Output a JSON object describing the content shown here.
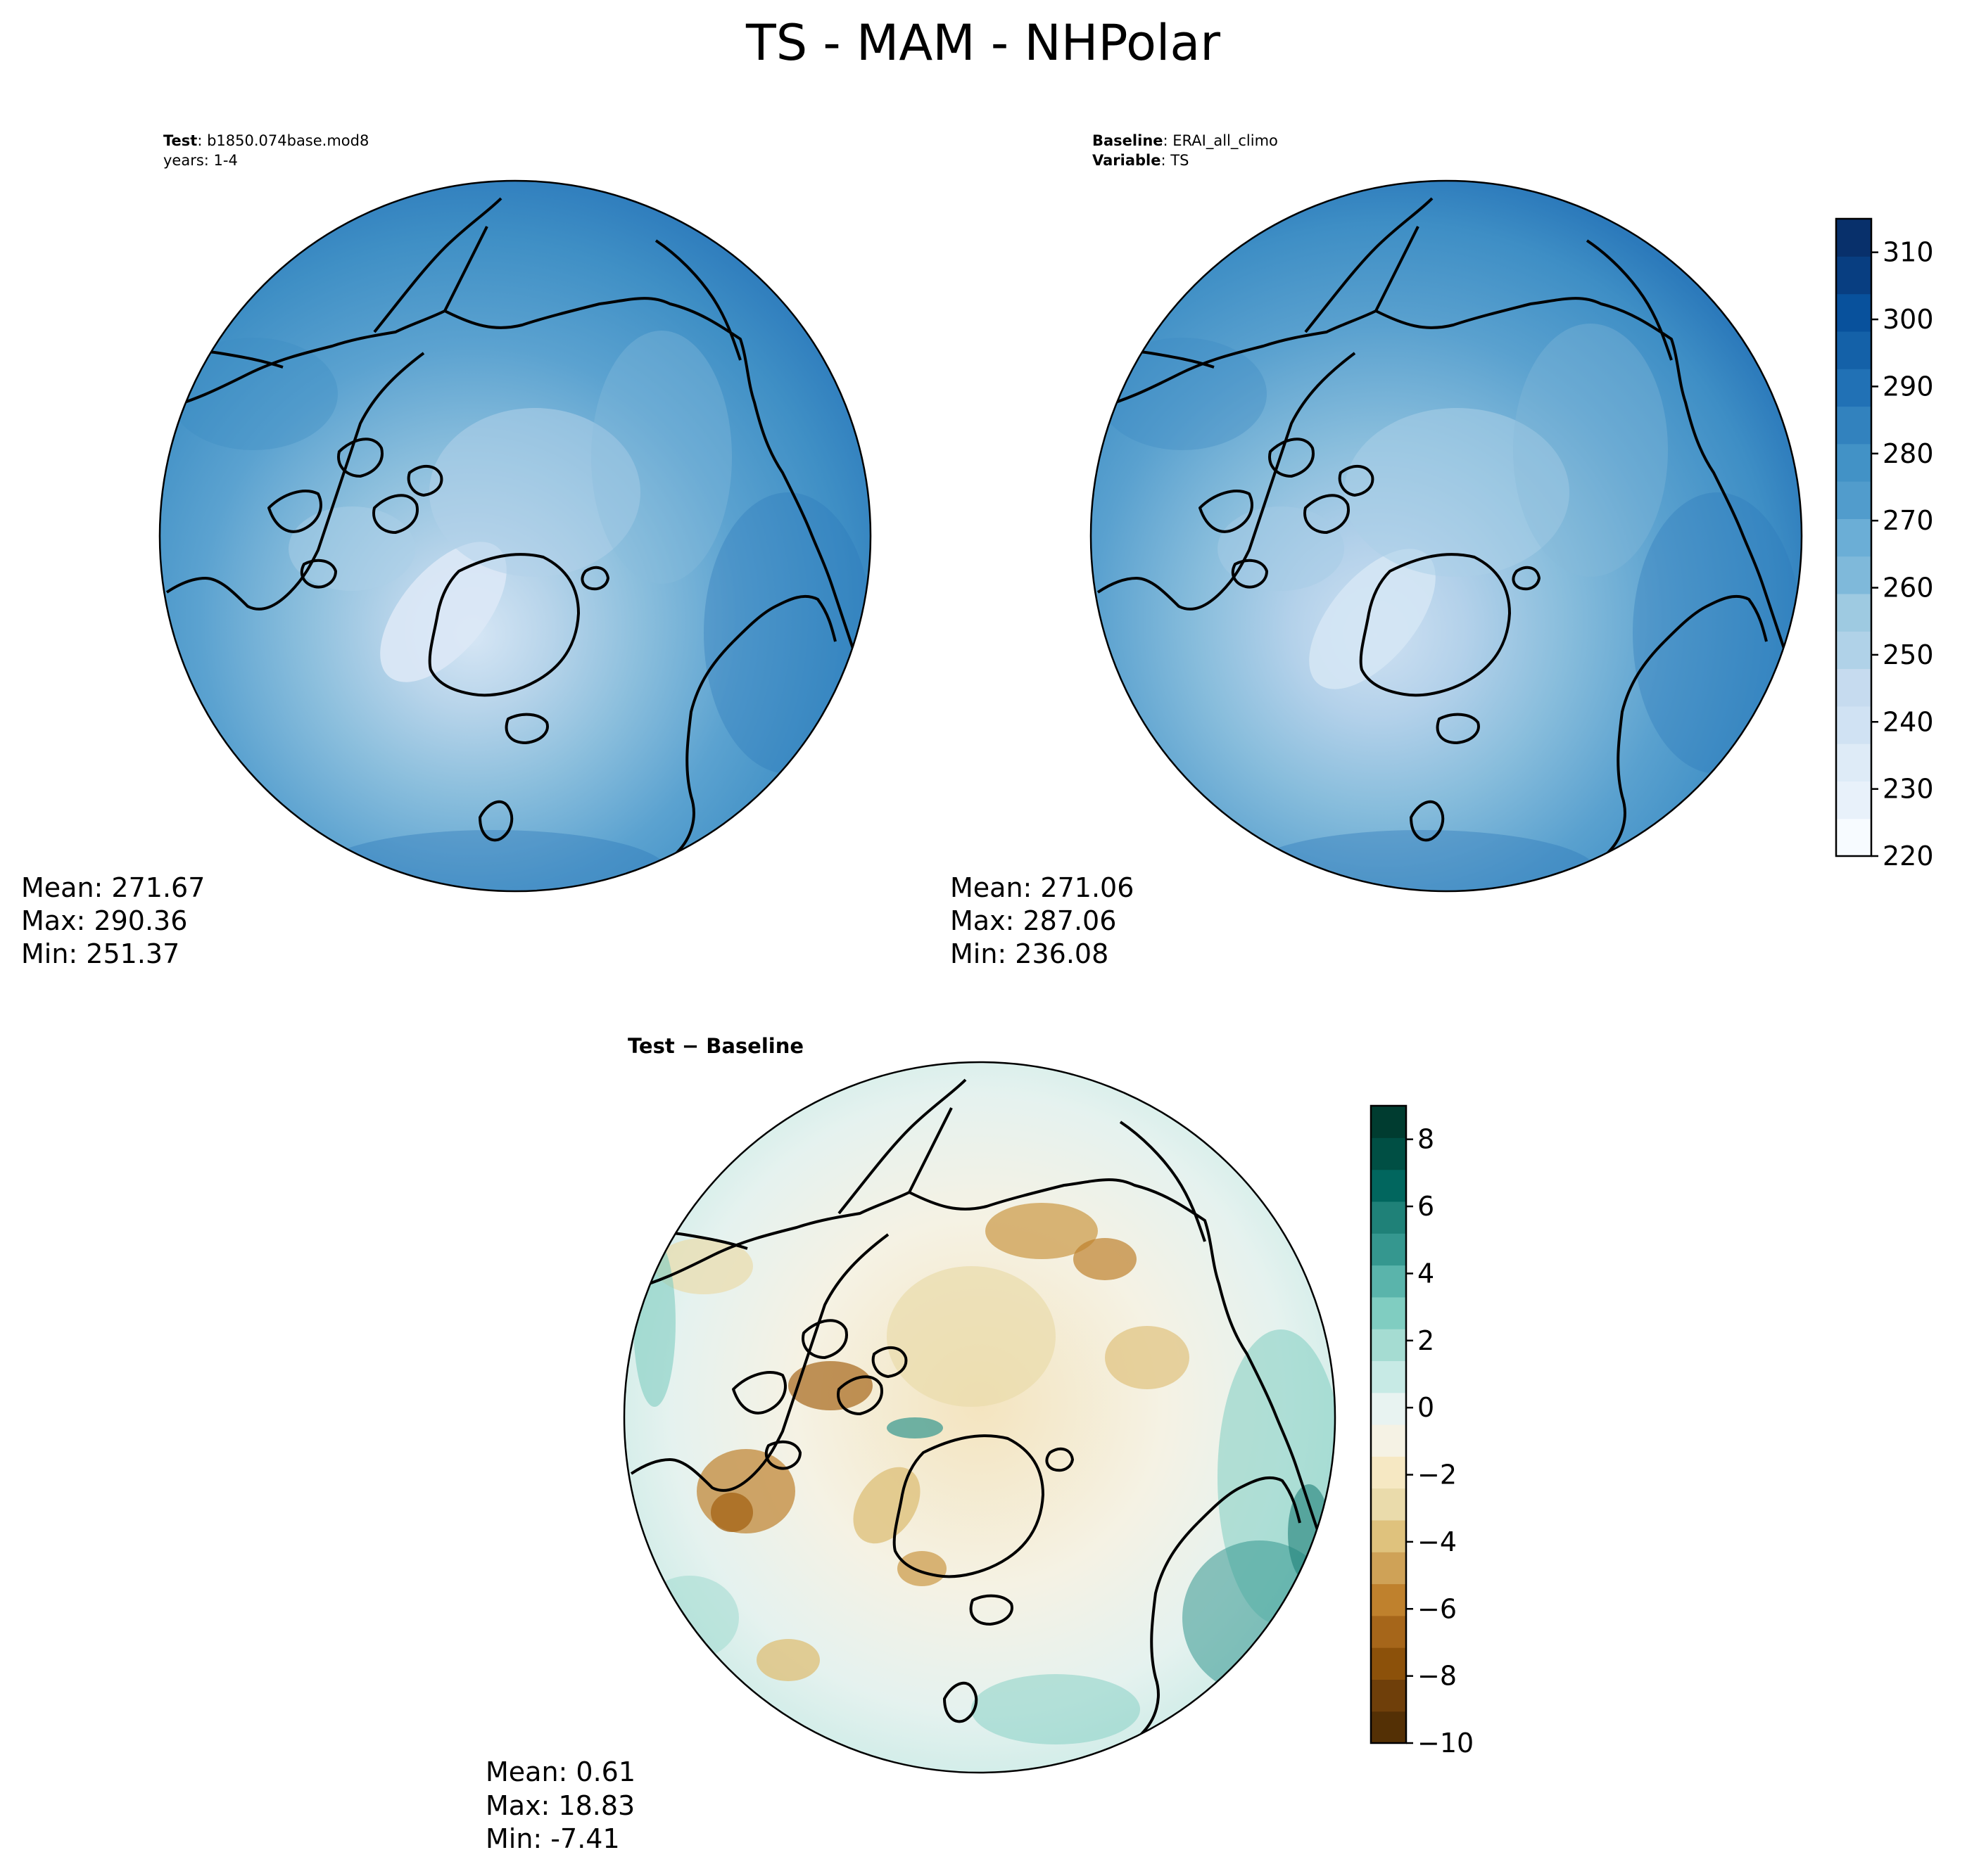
{
  "figure": {
    "title": "TS - MAM - NHPolar"
  },
  "panels": {
    "test": {
      "label_bold": "Test",
      "label_value": ": b1850.074base.mod8",
      "line2": "years: 1-4",
      "mean": "Mean: 271.67",
      "max": "Max: 290.36",
      "min": "Min: 251.37"
    },
    "baseline": {
      "label_bold": "Baseline",
      "label_value": ": ERAI_all_climo",
      "line2_bold": "Variable",
      "line2_value": ": TS",
      "mean": "Mean: 271.06",
      "max": "Max: 287.06",
      "min": "Min: 236.08"
    },
    "diff": {
      "label": "Test − Baseline",
      "mean": "Mean:  0.61",
      "max": "Max: 18.83",
      "min": "Min: -7.41"
    }
  },
  "colorbar_main": {
    "ticks": [
      "220",
      "230",
      "240",
      "250",
      "260",
      "270",
      "280",
      "290",
      "300",
      "310"
    ],
    "levels_min": 220,
    "levels_max": 315,
    "colormap": "Blues",
    "colors": [
      "#f7fbff",
      "#e8f1fa",
      "#deebf7",
      "#d0e2f3",
      "#c6dbef",
      "#b0d2e8",
      "#9ecae1",
      "#7fb9da",
      "#6baed6",
      "#519ccc",
      "#4292c6",
      "#3282be",
      "#2171b5",
      "#1461a8",
      "#08519c",
      "#083e81",
      "#08306b"
    ]
  },
  "colorbar_diff": {
    "ticks": [
      "−10",
      "−8",
      "−6",
      "−4",
      "−2",
      "0",
      "2",
      "4",
      "6",
      "8"
    ],
    "levels_min": -10,
    "levels_max": 9,
    "colormap": "BrBG",
    "colors": [
      "#543005",
      "#6f3f0a",
      "#8c510a",
      "#a6661a",
      "#bf812d",
      "#cfa257",
      "#dfc27d",
      "#eadbab",
      "#f6e8c3",
      "#f5f2e4",
      "#e8f3f1",
      "#c7eae5",
      "#a5dcd2",
      "#80cdc1",
      "#5ab4ab",
      "#35978f",
      "#1f8178",
      "#01665e",
      "#004f44",
      "#003c30"
    ]
  },
  "map": {
    "projection": "North Polar Stereographic",
    "features": [
      "coastlines"
    ]
  }
}
